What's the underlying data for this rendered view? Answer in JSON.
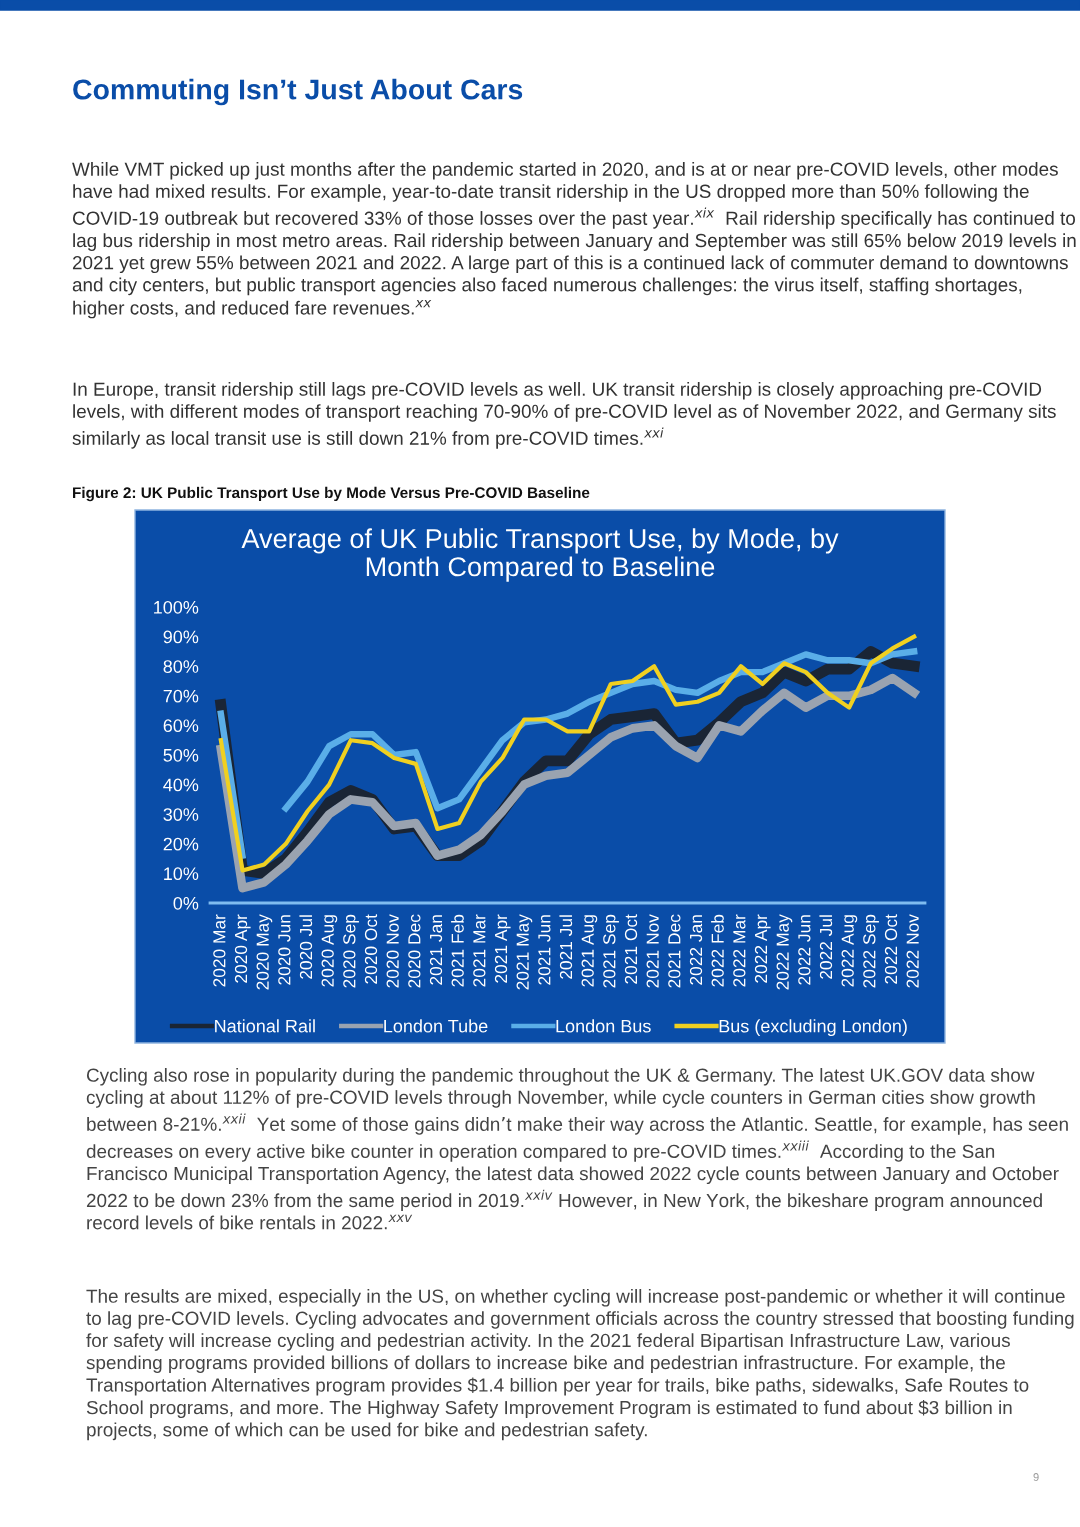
{
  "chart_data": {
    "type": "line",
    "title": "Average of UK Public Transport Use, by Mode, by\nMonth Compared to Baseline",
    "categories": [
      "2020 Mar",
      "2020 Apr",
      "2020 May",
      "2020 Jun",
      "2020 Jul",
      "2020 Aug",
      "2020 Sep",
      "2020 Oct",
      "2020 Nov",
      "2020 Dec",
      "2021 Jan",
      "2021 Feb",
      "2021 Mar",
      "2021 Apr",
      "2021 May",
      "2021 Jun",
      "2021 Jul",
      "2021 Aug",
      "2021 Sep",
      "2021 Oct",
      "2021 Nov",
      "2021 Dec",
      "2022 Jan",
      "2022 Feb",
      "2022 Mar",
      "2022 Apr",
      "2022 May",
      "2022 Jun",
      "2022 Jul",
      "2022 Aug",
      "2022 Sep",
      "2022 Oct",
      "2022 Nov"
    ],
    "series": [
      {
        "name": "National Rail",
        "color": "#1a2535",
        "values": [
          67,
          11,
          10,
          15,
          24,
          34,
          38,
          35,
          25,
          26,
          16,
          16,
          21,
          31,
          41,
          48,
          48,
          57,
          62,
          63,
          64,
          54,
          55,
          61,
          68,
          71,
          78,
          75,
          79,
          79,
          85,
          81,
          80
        ]
      },
      {
        "name": "London Tube",
        "color": "#9aa3b0",
        "values": [
          52,
          5,
          7,
          13,
          21,
          30,
          35,
          34,
          26,
          27,
          16,
          18,
          23,
          31,
          40,
          43,
          44,
          50,
          56,
          59,
          60,
          53,
          49,
          60,
          58,
          65,
          71,
          66,
          70,
          70,
          72,
          76,
          71
        ]
      },
      {
        "name": "London Bus",
        "color": "#5aaee8",
        "values": [
          64,
          16,
          null,
          32,
          41,
          53,
          57,
          57,
          50,
          51,
          32,
          35,
          45,
          55,
          61,
          62,
          64,
          68,
          71,
          74,
          75,
          72,
          71,
          75,
          78,
          78,
          81,
          84,
          82,
          82,
          81,
          84,
          85
        ]
      },
      {
        "name": "Bus (excluding London)",
        "color": "#f0d020",
        "values": [
          55,
          11,
          13,
          20,
          31,
          40,
          55,
          54,
          49,
          47,
          25,
          27,
          41,
          49,
          62,
          62,
          58,
          58,
          74,
          75,
          80,
          67,
          68,
          71,
          80,
          74,
          81,
          78,
          71,
          66,
          81,
          86,
          90
        ]
      }
    ],
    "ylim": [
      0,
      100
    ],
    "yticks": [
      {
        "value": 0,
        "label": "0%"
      },
      {
        "value": 10,
        "label": "10%"
      },
      {
        "value": 20,
        "label": "20%"
      },
      {
        "value": 30,
        "label": "30%"
      },
      {
        "value": 40,
        "label": "40%"
      },
      {
        "value": 50,
        "label": "50%"
      },
      {
        "value": 60,
        "label": "60%"
      },
      {
        "value": 70,
        "label": "70%"
      },
      {
        "value": 80,
        "label": "80%"
      },
      {
        "value": 90,
        "label": "90%"
      },
      {
        "value": 100,
        "label": "100%"
      }
    ],
    "grid": false,
    "legend": "bottom",
    "marker": "none",
    "line_style": "solid",
    "annotations": [
      "Commuting Isn’t Just About Cars",
      "While VMT picked up just months after the pandemic started in 2020, and is at or near pre-COVID levels, other modes have had mixed results. For example, year-to-date transit ridership in the US dropped more than 50% following the COVID-19 outbreak but recovered 33% of those losses over the past year.$^{xix}$  Rail ridership specifically has continued to lag bus ridership in most metro areas. Rail ridership between January and September was still 65% below 2019 levels in 2021 yet grew 55% between 2021 and 2022. A large part of this is a continued lack of commuter demand to downtowns and city centers, but public transport agencies also faced numerous challenges: the virus itself, staffing shortages, higher costs, and reduced fare revenues.$^{xx}$",
      "In Europe, transit ridership still lags pre-COVID levels as well. UK transit ridership is closely approaching pre-COVID levels, with different modes of transport reaching 70-90% of pre-COVID level as of November 2022, and Germany sits similarly as local transit use is still down 21% from pre-COVID times.$^{xxi}$",
      "Figure 2: UK Public Transport Use by Mode Versus Pre-COVID Baseline",
      "Cycling also rose in popularity during the pandemic throughout the UK & Germany. The latest UK.GOV data show cycling at about 112% of pre-COVID levels through November, while cycle counters in German cities show growth between 8-21%.$^{xxii}$  Yet some of those gains didn’t make their way across the Atlantic. Seattle, for example, has seen decreases on every active bike counter in operation compared to pre-COVID times.$^{xxiii}$  According to the San Francisco Municipal Transportation Agency, the latest data showed 2022 cycle counts between January and October 2022 to be down 23% from the same period in 2019.$^{xxiv}$ However, in New York, the bikeshare program announced record levels of bike rentals in 2022.$^{xxv}$",
      "The results are mixed, especially in the US, on whether cycling will increase post-pandemic or whether it will continue to lag pre-COVID levels. Cycling advocates and government officials across the country stressed that boosting funding for safety will increase cycling and pedestrian activity. In the 2021 federal Bipartisan Infrastructure Law, various spending programs provided billions of dollars to increase bike and pedestrian infrastructure. For example, the Transportation Alternatives program provides $1.4 billion per year for trails, bike paths, sidewalks, Safe Routes to School programs, and more. The Highway Safety Improvement Program is estimated to fund about $3 billion in projects, some of which can be used for bike and pedestrian safety.",
      "9"
    ]
  }
}
